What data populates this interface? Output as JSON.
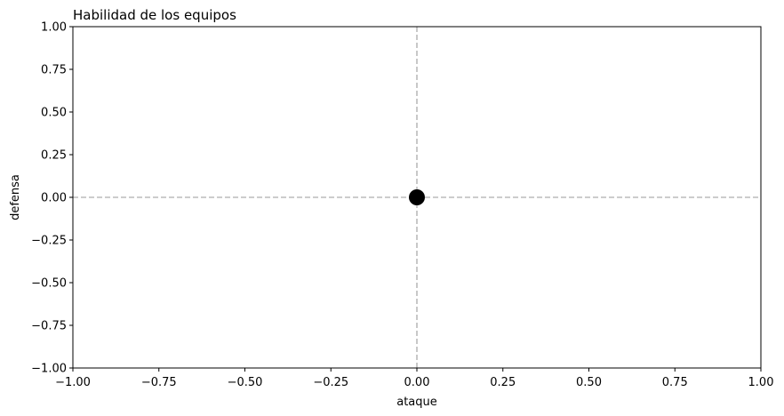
{
  "chart_data": {
    "type": "scatter",
    "title": "Habilidad de los equipos",
    "xlabel": "ataque",
    "ylabel": "defensa",
    "xlim": [
      -1.0,
      1.0
    ],
    "ylim": [
      -1.0,
      1.0
    ],
    "xticks": [
      -1.0,
      -0.75,
      -0.5,
      -0.25,
      0.0,
      0.25,
      0.5,
      0.75,
      1.0
    ],
    "xtick_labels": [
      "−1.00",
      "−0.75",
      "−0.50",
      "−0.25",
      "0.00",
      "0.25",
      "0.50",
      "0.75",
      "1.00"
    ],
    "yticks": [
      -1.0,
      -0.75,
      -0.5,
      -0.25,
      0.0,
      0.25,
      0.5,
      0.75,
      1.0
    ],
    "ytick_labels": [
      "−1.00",
      "−0.75",
      "−0.50",
      "−0.25",
      "0.00",
      "0.25",
      "0.50",
      "0.75",
      "1.00"
    ],
    "grid": false,
    "reference_lines": [
      {
        "axis": "x",
        "value": 0.0,
        "style": "dashed",
        "color": "#bbbbbb"
      },
      {
        "axis": "y",
        "value": 0.0,
        "style": "dashed",
        "color": "#bbbbbb"
      }
    ],
    "series": [
      {
        "points": [
          {
            "x": 0.0,
            "y": 0.0
          }
        ],
        "color": "#000000"
      }
    ]
  }
}
